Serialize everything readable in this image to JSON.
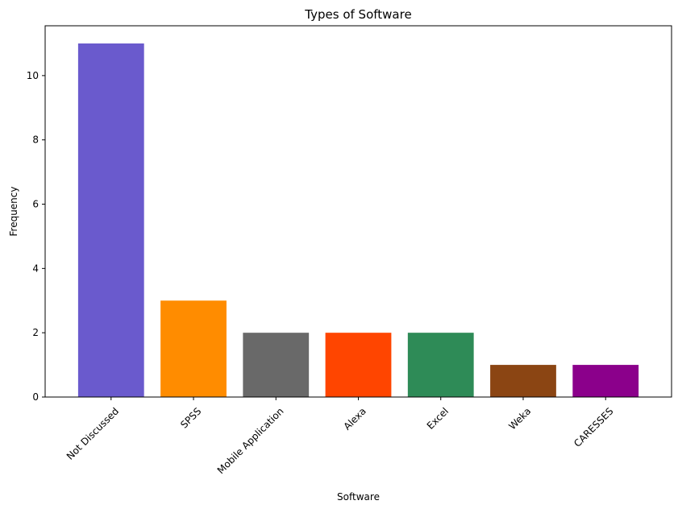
{
  "chart_data": {
    "type": "bar",
    "title": "Types of Software",
    "xlabel": "Software",
    "ylabel": "Frequency",
    "categories": [
      "Not Discussed",
      "SPSS",
      "Mobile Application",
      "Alexa",
      "Excel",
      "Weka",
      "CARESSES"
    ],
    "values": [
      11,
      3,
      2,
      2,
      2,
      1,
      1
    ],
    "colors": [
      "#6a5acd",
      "#ff8c00",
      "#696969",
      "#ff4500",
      "#2e8b57",
      "#8b4513",
      "#8b008b"
    ],
    "ylim": [
      0,
      11.55
    ],
    "yticks": [
      0,
      2,
      4,
      6,
      8,
      10
    ],
    "grid": false,
    "legend": "none"
  }
}
